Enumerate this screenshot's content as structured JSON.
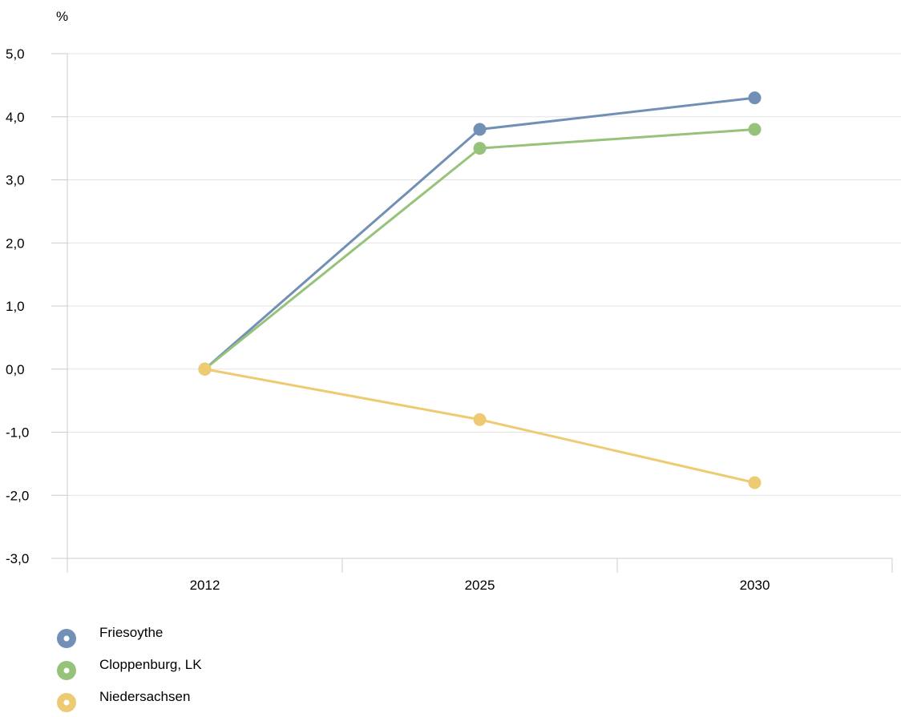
{
  "chart_data": {
    "type": "line",
    "unit_label": "%",
    "categories": [
      "2012",
      "2025",
      "2030"
    ],
    "ylim": [
      -3,
      5
    ],
    "yticks": [
      5,
      4,
      3,
      2,
      1,
      0,
      -1,
      -2,
      -3
    ],
    "ytick_labels": [
      "5,0",
      "4,0",
      "3,0",
      "2,0",
      "1,0",
      "0,0",
      "-1,0",
      "-2,0",
      "-3,0"
    ],
    "grid": true,
    "legend_position": "bottom-left",
    "series": [
      {
        "name": "Friesoythe",
        "color": "#7290b5",
        "values": [
          0.0,
          3.8,
          4.3
        ]
      },
      {
        "name": "Cloppenburg, LK",
        "color": "#96c27a",
        "values": [
          0.0,
          3.5,
          3.8
        ]
      },
      {
        "name": "Niedersachsen",
        "color": "#eecb73",
        "values": [
          0.0,
          -0.8,
          -1.8
        ]
      }
    ]
  }
}
